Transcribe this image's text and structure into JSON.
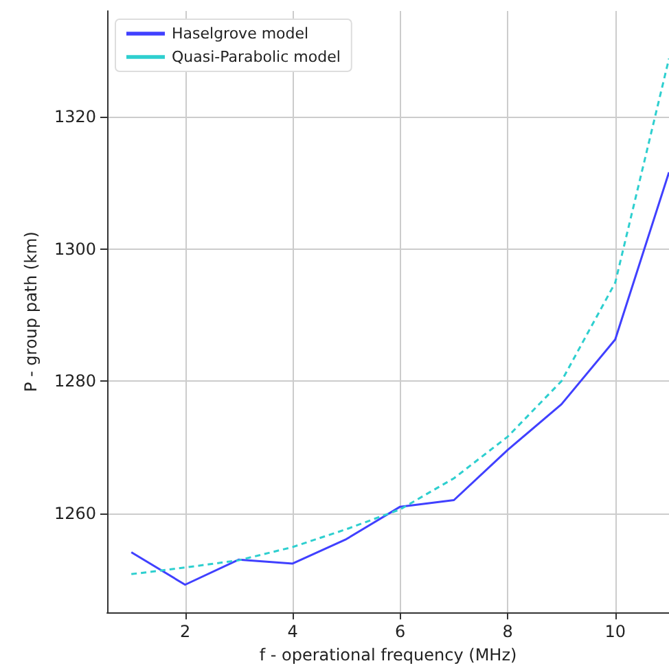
{
  "chart_data": {
    "type": "line",
    "xlabel": "f - operational frequency (MHz)",
    "ylabel": "P - group path (km)",
    "x": [
      1,
      2,
      3,
      4,
      5,
      6,
      7,
      8,
      9,
      10,
      11
    ],
    "series": [
      {
        "name": "Haselgrove model",
        "color": "#4040ff",
        "line_style": "solid",
        "values": [
          1254.1,
          1249.2,
          1253,
          1252.4,
          1256.1,
          1261,
          1262,
          1269.6,
          1276.5,
          1286.3,
          1311.6
        ]
      },
      {
        "name": "Quasi-Parabolic model",
        "color": "#2ecfcf",
        "line_style": "dashed",
        "values": [
          1250.8,
          1251.8,
          1252.9,
          1254.9,
          1257.6,
          1260.6,
          1265.3,
          1271.6,
          1280,
          1294.9,
          1328.8
        ]
      }
    ],
    "xlim": [
      0.55,
      11
    ],
    "xticks": [
      2,
      4,
      6,
      8,
      10
    ],
    "ylim": [
      1245,
      1336
    ],
    "yticks": [
      1260,
      1280,
      1300,
      1320
    ],
    "grid": true,
    "legend": "top left",
    "marker": "none"
  }
}
